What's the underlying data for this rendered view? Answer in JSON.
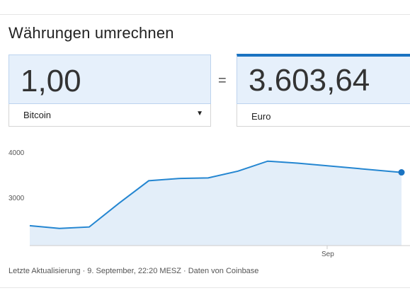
{
  "title": "Währungen umrechnen",
  "from": {
    "amount": "1,00",
    "currency": "Bitcoin"
  },
  "equals": "=",
  "to": {
    "amount": "3.603,64",
    "currency": "Euro"
  },
  "footer": "Letzte Aktualisierung · 9. September, 22:20 MESZ · Daten von Coinbase",
  "colors": {
    "accent": "#1a73c1",
    "line": "#2486d1",
    "fill": "#e3eef9",
    "input_bg": "#e6f0fb"
  },
  "chart_data": {
    "type": "area",
    "title": "",
    "xlabel": "",
    "ylabel": "",
    "x_ticks": [
      "Sep"
    ],
    "y_ticks": [
      4000,
      3000
    ],
    "ylim": [
      2000,
      4000
    ],
    "x": [
      0,
      1,
      2,
      3,
      4,
      5,
      6,
      7,
      8,
      9,
      10,
      11
    ],
    "values": [
      2388,
      2325,
      2360,
      2900,
      3413,
      3465,
      3478,
      3632,
      3860,
      3815,
      3604,
      3604
    ],
    "last_point_marker": true,
    "grid": false
  }
}
